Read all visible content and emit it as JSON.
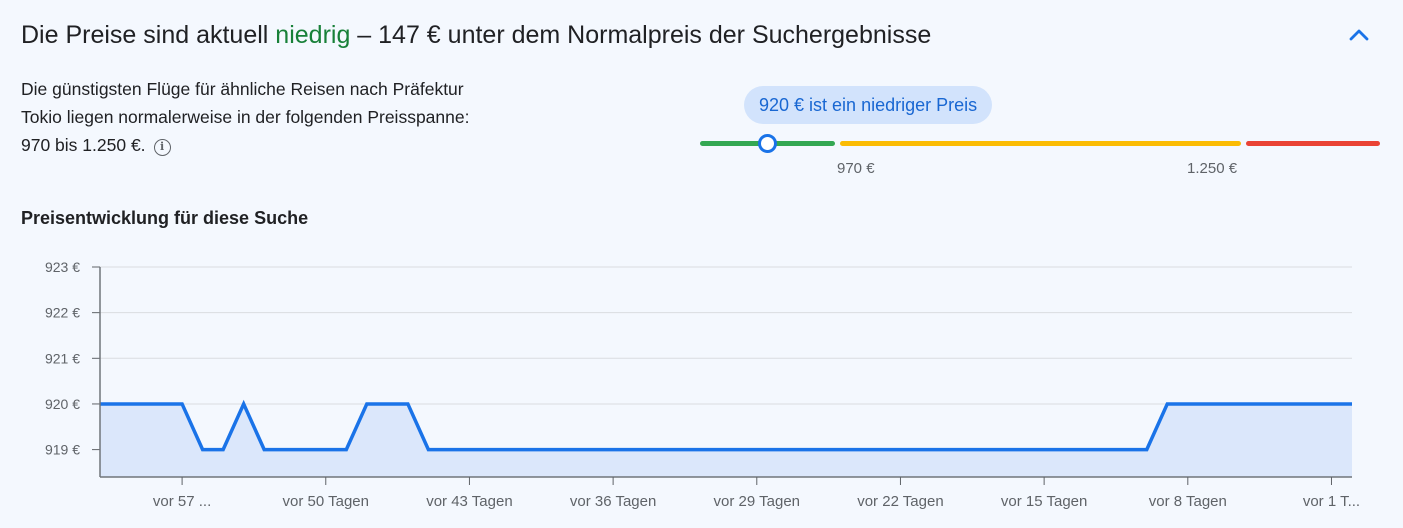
{
  "header": {
    "prefix": "Die Preise sind aktuell ",
    "status_word": "niedrig",
    "suffix": " – 147 € unter dem Normalpreis der Suchergebnisse",
    "collapse_icon": "chevron-up-icon"
  },
  "description": {
    "lines": [
      "Die günstigsten Flüge für ähnliche Reisen nach Präfektur",
      "Tokio liegen normalerweise in der folgenden Preisspanne:",
      "970 bis 1.250 €."
    ],
    "info_icon": "info-icon"
  },
  "price_indicator": {
    "bubble": "920 € ist ein niedriger Preis",
    "low_label": "970 €",
    "high_label": "1.250 €",
    "colors": {
      "low": "#34a853",
      "typical": "#fbbc04",
      "high": "#ea4335"
    }
  },
  "chart_title": "Preisentwicklung für diese Suche",
  "chart_data": {
    "type": "area",
    "y_ticks": [
      {
        "value": 919,
        "label": "919 €"
      },
      {
        "value": 920,
        "label": "920 €"
      },
      {
        "value": 921,
        "label": "921 €"
      },
      {
        "value": 922,
        "label": "922 €"
      },
      {
        "value": 923,
        "label": "923 €"
      }
    ],
    "ylim": [
      918.4,
      923
    ],
    "xlim": [
      61,
      0
    ],
    "x_ticks": [
      {
        "value": 57,
        "label": "vor 57 ..."
      },
      {
        "value": 50,
        "label": "vor 50 Tagen"
      },
      {
        "value": 43,
        "label": "vor 43 Tagen"
      },
      {
        "value": 36,
        "label": "vor 36 Tagen"
      },
      {
        "value": 29,
        "label": "vor 29 Tagen"
      },
      {
        "value": 22,
        "label": "vor 22 Tagen"
      },
      {
        "value": 15,
        "label": "vor 15 Tagen"
      },
      {
        "value": 8,
        "label": "vor 8 Tagen"
      },
      {
        "value": 1,
        "label": "vor 1 T..."
      }
    ],
    "x": [
      61,
      57,
      56,
      55,
      54,
      53,
      52,
      49,
      48,
      47,
      46,
      45,
      44,
      10,
      9,
      0
    ],
    "y": [
      920,
      920,
      919,
      919,
      920,
      919,
      919,
      919,
      920,
      920,
      920,
      919,
      919,
      919,
      920,
      920
    ],
    "line_color": "#1a73e8",
    "fill_color": "#dbe7fb",
    "grid": true
  }
}
